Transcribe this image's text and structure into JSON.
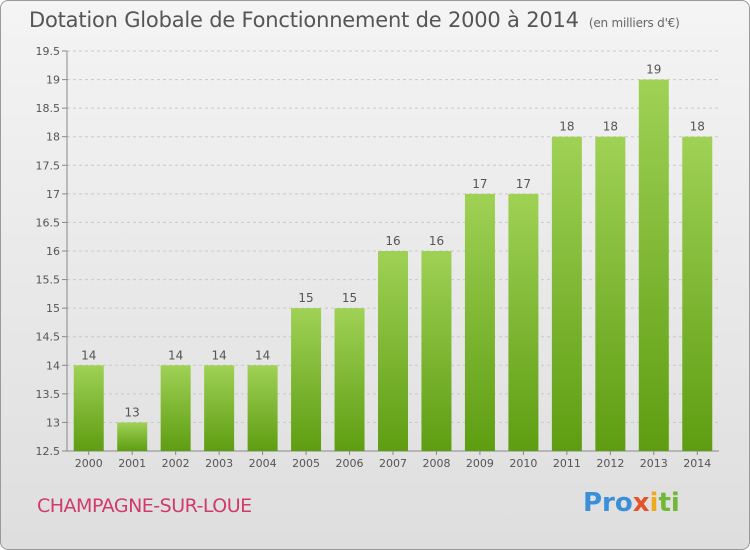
{
  "header": {
    "title": "Dotation Globale de Fonctionnement de 2000 à 2014",
    "subtitle": "(en milliers d'€)"
  },
  "footer": {
    "commune": "CHAMPAGNE-SUR-LOUE",
    "logo_parts": [
      "Pro",
      "x",
      "i",
      "ti"
    ]
  },
  "colors": {
    "bar_light": "#9fd155",
    "bar_dark": "#5e9d12",
    "grid": "#c8c8c8",
    "commune": "#d03a6e"
  },
  "chart_data": {
    "type": "bar",
    "categories": [
      "2000",
      "2001",
      "2002",
      "2003",
      "2004",
      "2005",
      "2006",
      "2007",
      "2008",
      "2009",
      "2010",
      "2011",
      "2012",
      "2013",
      "2014"
    ],
    "values": [
      14,
      13,
      14,
      14,
      14,
      15,
      15,
      16,
      16,
      17,
      17,
      18,
      18,
      19,
      18
    ],
    "data_labels": [
      "14",
      "13",
      "14",
      "14",
      "14",
      "15",
      "15",
      "16",
      "16",
      "17",
      "17",
      "18",
      "18",
      "19",
      "18"
    ],
    "title": "Dotation Globale de Fonctionnement de 2000 à 2014",
    "subtitle": "(en milliers d'€)",
    "xlabel": "",
    "ylabel": "",
    "ylim": [
      12.5,
      19.5
    ],
    "yticks": [
      12.5,
      13,
      13.5,
      14,
      14.5,
      15,
      15.5,
      16,
      16.5,
      17,
      17.5,
      18,
      18.5,
      19,
      19.5
    ],
    "ytick_labels": [
      "12.5",
      "13",
      "13.5",
      "14",
      "14.5",
      "15",
      "15.5",
      "16",
      "16.5",
      "17",
      "17.5",
      "18",
      "18.5",
      "19",
      "19.5"
    ],
    "grid": true,
    "legend": "none"
  }
}
